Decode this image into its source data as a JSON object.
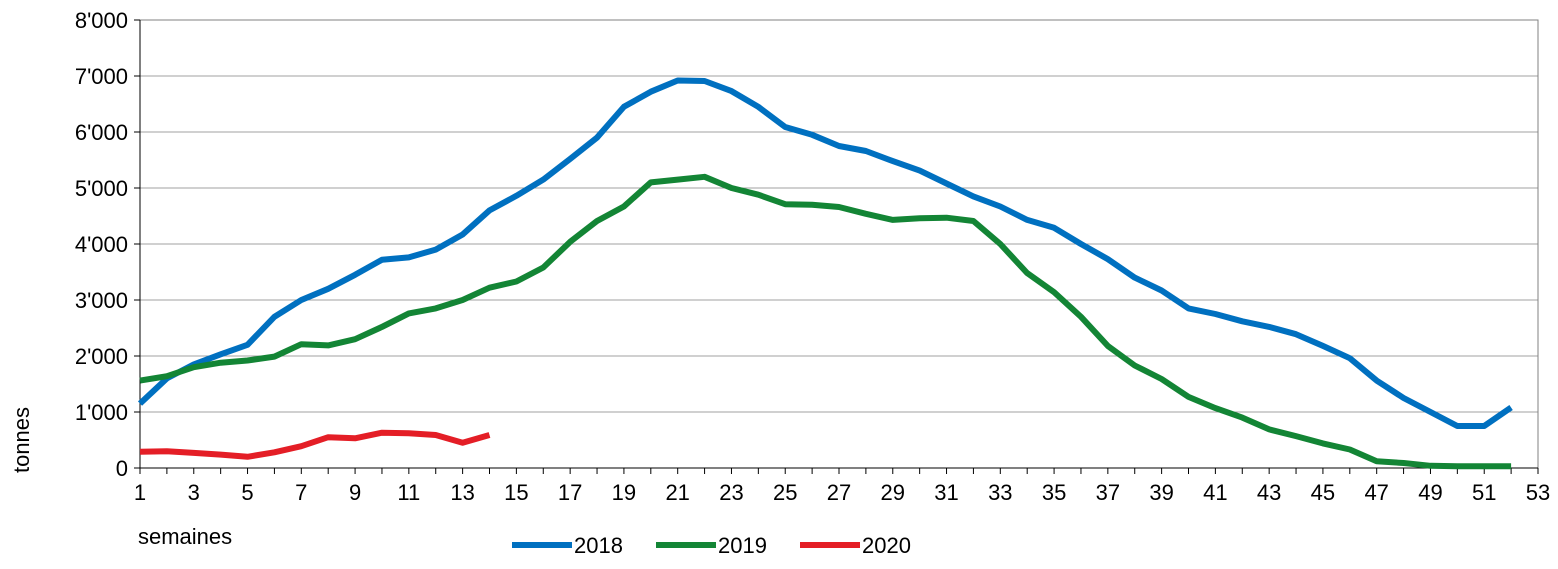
{
  "chart_data": {
    "type": "line",
    "title": "",
    "xlabel": "semaines",
    "ylabel": "tonnes",
    "xlim": [
      1,
      53
    ],
    "ylim": [
      0,
      8000
    ],
    "xticks": [
      1,
      3,
      5,
      7,
      9,
      11,
      13,
      15,
      17,
      19,
      21,
      23,
      25,
      27,
      29,
      31,
      33,
      35,
      37,
      39,
      41,
      43,
      45,
      47,
      49,
      51,
      53
    ],
    "xtick_labels": [
      "1",
      "3",
      "5",
      "7",
      "9",
      "11",
      "13",
      "15",
      "17",
      "19",
      "21",
      "23",
      "25",
      "27",
      "29",
      "31",
      "33",
      "35",
      "37",
      "39",
      "41",
      "43",
      "45",
      "47",
      "49",
      "51",
      "53"
    ],
    "yticks": [
      0,
      1000,
      2000,
      3000,
      4000,
      5000,
      6000,
      7000,
      8000
    ],
    "ytick_labels": [
      "0",
      "1'000",
      "2'000",
      "3'000",
      "4'000",
      "5'000",
      "6'000",
      "7'000",
      "8'000"
    ],
    "grid": "horizontal",
    "legend": "bottom",
    "series": [
      {
        "name": "2018",
        "color": "#0070C0",
        "x": [
          1,
          2,
          3,
          4,
          5,
          6,
          7,
          8,
          9,
          10,
          11,
          12,
          13,
          14,
          15,
          16,
          17,
          18,
          19,
          20,
          21,
          22,
          23,
          24,
          25,
          26,
          27,
          28,
          29,
          30,
          31,
          32,
          33,
          34,
          35,
          36,
          37,
          38,
          39,
          40,
          41,
          42,
          43,
          44,
          45,
          46,
          47,
          48,
          49,
          50,
          51,
          52
        ],
        "values": [
          1150,
          1600,
          1850,
          2030,
          2200,
          2700,
          3000,
          3200,
          3450,
          3720,
          3760,
          3900,
          4170,
          4600,
          4860,
          5150,
          5520,
          5900,
          6450,
          6720,
          6920,
          6910,
          6730,
          6450,
          6090,
          5950,
          5750,
          5660,
          5480,
          5310,
          5080,
          4850,
          4670,
          4430,
          4290,
          4000,
          3730,
          3400,
          3170,
          2850,
          2750,
          2620,
          2520,
          2390,
          2180,
          1960,
          1560,
          1250,
          1000,
          750,
          750,
          1080
        ]
      },
      {
        "name": "2019",
        "color": "#138535",
        "x": [
          1,
          2,
          3,
          4,
          5,
          6,
          7,
          8,
          9,
          10,
          11,
          12,
          13,
          14,
          15,
          16,
          17,
          18,
          19,
          20,
          21,
          22,
          23,
          24,
          25,
          26,
          27,
          28,
          29,
          30,
          31,
          32,
          33,
          34,
          35,
          36,
          37,
          38,
          39,
          40,
          41,
          42,
          43,
          44,
          45,
          46,
          47,
          48,
          49,
          50,
          51,
          52
        ],
        "values": [
          1560,
          1640,
          1800,
          1880,
          1920,
          1990,
          2210,
          2190,
          2300,
          2520,
          2760,
          2850,
          3000,
          3220,
          3330,
          3580,
          4040,
          4410,
          4670,
          5100,
          5150,
          5200,
          5000,
          4880,
          4710,
          4700,
          4660,
          4540,
          4430,
          4460,
          4470,
          4410,
          4000,
          3480,
          3140,
          2700,
          2180,
          1830,
          1590,
          1270,
          1070,
          900,
          690,
          570,
          440,
          330,
          120,
          90,
          40,
          30,
          30,
          30
        ]
      },
      {
        "name": "2020",
        "color": "#E41E26",
        "x": [
          1,
          2,
          3,
          4,
          5,
          6,
          7,
          8,
          9,
          10,
          11,
          12,
          13,
          14
        ],
        "values": [
          290,
          300,
          270,
          240,
          200,
          280,
          390,
          550,
          530,
          630,
          620,
          590,
          450,
          590
        ]
      }
    ]
  }
}
